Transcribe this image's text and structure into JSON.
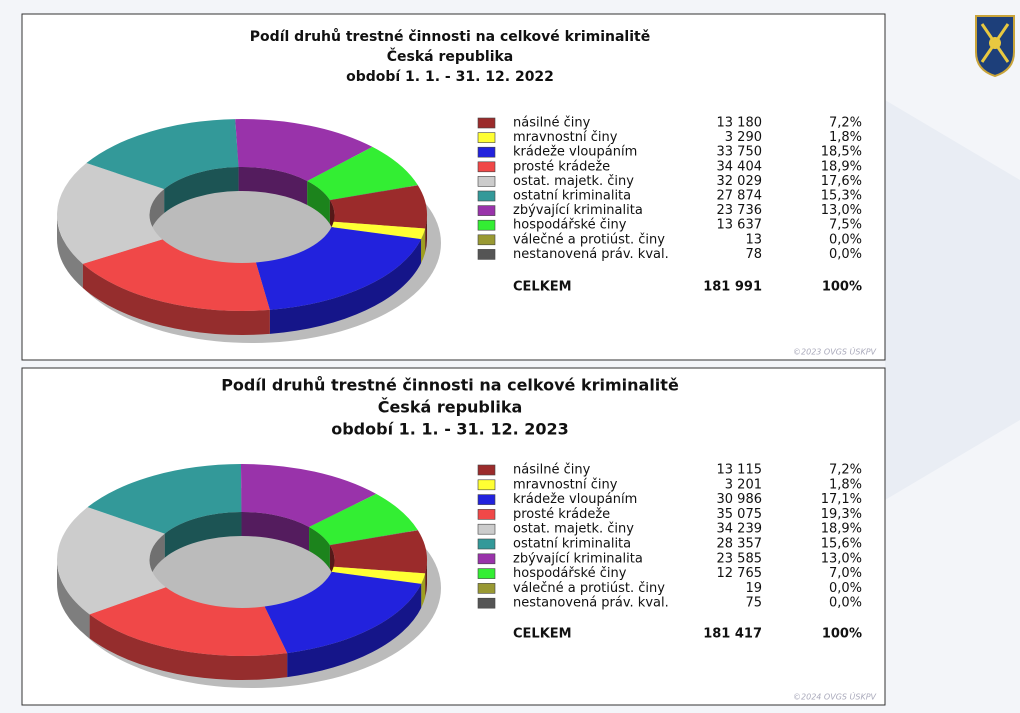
{
  "chart_data": [
    {
      "type": "pie",
      "donut": true,
      "title": [
        "Podíl druhů trestné činnosti na celkové kriminalitě",
        "Česká republika",
        "období 1. 1. - 31. 12. 2022"
      ],
      "categories": [
        "násilné činy",
        "mravnostní činy",
        "krádeže vloupáním",
        "prosté krádeže",
        "ostat. majetk. činy",
        "ostatní kriminalita",
        "zbývající kriminalita",
        "hospodářské činy",
        "válečné a protiúst. činy",
        "nestanovená práv. kval."
      ],
      "values": [
        13180,
        3290,
        33750,
        34404,
        32029,
        27874,
        23736,
        13637,
        13,
        78
      ],
      "value_labels": [
        "13 180",
        "3 290",
        "33 750",
        "34 404",
        "32 029",
        "27 874",
        "23 736",
        "13 637",
        "13",
        "78"
      ],
      "percent_values": [
        7.2,
        1.8,
        18.5,
        18.9,
        17.6,
        15.3,
        13.0,
        7.5,
        0.0,
        0.0
      ],
      "percent_labels": [
        "7,2%",
        "1,8%",
        "18,5%",
        "18,9%",
        "17,6%",
        "15,3%",
        "13,0%",
        "7,5%",
        "0,0%",
        "0,0%"
      ],
      "colors": [
        "#9b2b2b",
        "#ffff33",
        "#2222dd",
        "#f04848",
        "#cccccc",
        "#339999",
        "#9933aa",
        "#33ee33",
        "#999933",
        "#555555"
      ],
      "total_name": "CELKEM",
      "total": 181991,
      "total_label": "181 991",
      "total_percent": 100,
      "total_percent_label": "100%",
      "footer": "©2023 OVGS ÚSKPV"
    },
    {
      "type": "pie",
      "donut": true,
      "title": [
        "Podíl druhů trestné činnosti na celkové kriminalitě",
        "Česká republika",
        "období 1. 1. - 31. 12. 2023"
      ],
      "categories": [
        "násilné činy",
        "mravnostní činy",
        "krádeže vloupáním",
        "prosté krádeže",
        "ostat. majetk. činy",
        "ostatní kriminalita",
        "zbývající kriminalita",
        "hospodářské činy",
        "válečné a protiúst. činy",
        "nestanovená práv. kval."
      ],
      "values": [
        13115,
        3201,
        30986,
        35075,
        34239,
        28357,
        23585,
        12765,
        19,
        75
      ],
      "value_labels": [
        "13 115",
        "3 201",
        "30 986",
        "35 075",
        "34 239",
        "28 357",
        "23 585",
        "12 765",
        "19",
        "75"
      ],
      "percent_values": [
        7.2,
        1.8,
        17.1,
        19.3,
        18.9,
        15.6,
        13.0,
        7.0,
        0.0,
        0.0
      ],
      "percent_labels": [
        "7,2%",
        "1,8%",
        "17,1%",
        "19,3%",
        "18,9%",
        "15,6%",
        "13,0%",
        "7,0%",
        "0,0%",
        "0,0%"
      ],
      "colors": [
        "#9b2b2b",
        "#ffff33",
        "#2222dd",
        "#f04848",
        "#cccccc",
        "#339999",
        "#9933aa",
        "#33ee33",
        "#999933",
        "#555555"
      ],
      "total_name": "CELKEM",
      "total": 181417,
      "total_label": "181 417",
      "total_percent": 100,
      "total_percent_label": "100%",
      "footer": "©2024 OVGS ÚSKPV"
    }
  ]
}
